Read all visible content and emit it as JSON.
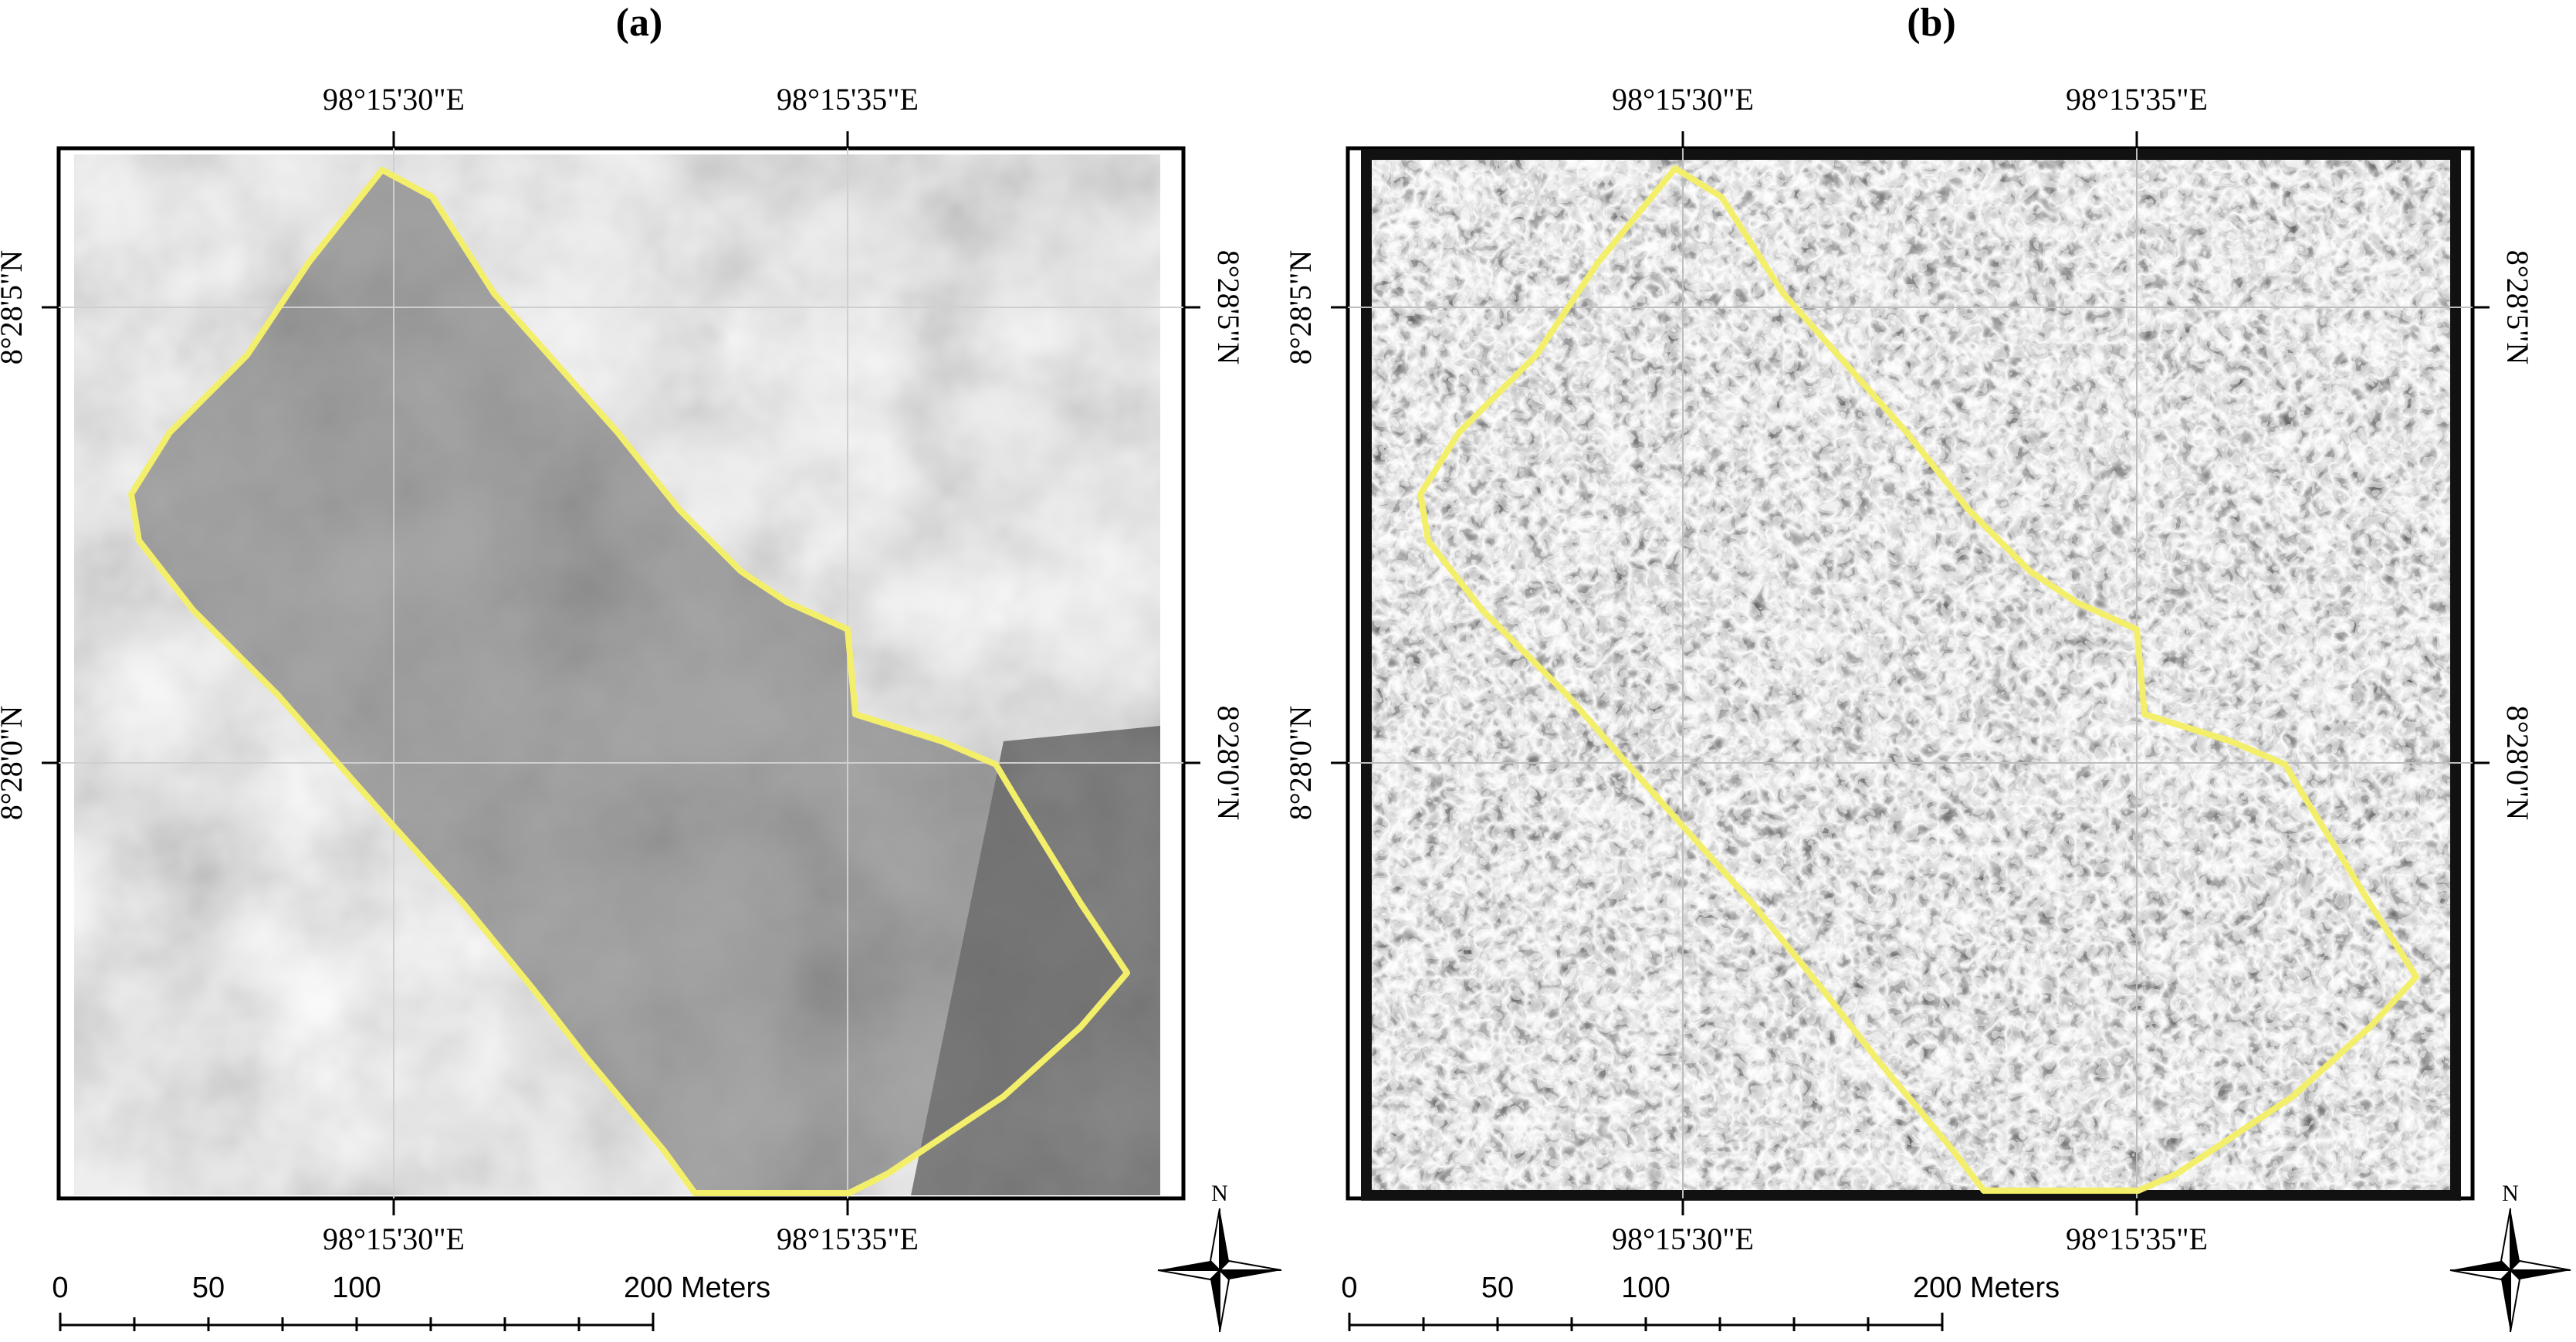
{
  "panels": [
    {
      "label": "(a)",
      "coords": {
        "lon_left": "98°15'30\"E",
        "lon_right": "98°15'35\"E",
        "lat_upper": "8°28'5\"N",
        "lat_lower": "8°28'0\"N"
      },
      "scale_bar": {
        "ticks": [
          "0",
          "50",
          "100",
          "200 Meters"
        ]
      },
      "north_label": "N",
      "image_kind": "grayscale",
      "outline_color": "#f4ef6a"
    },
    {
      "label": "(b)",
      "coords": {
        "lon_left": "98°15'30\"E",
        "lon_right": "98°15'35\"E",
        "lat_upper": "8°28'5\"N",
        "lat_lower": "8°28'0\"N"
      },
      "scale_bar": {
        "ticks": [
          "0",
          "50",
          "100",
          "200 Meters"
        ]
      },
      "north_label": "N",
      "image_kind": "texture",
      "outline_color": "#f4ef6a"
    }
  ]
}
